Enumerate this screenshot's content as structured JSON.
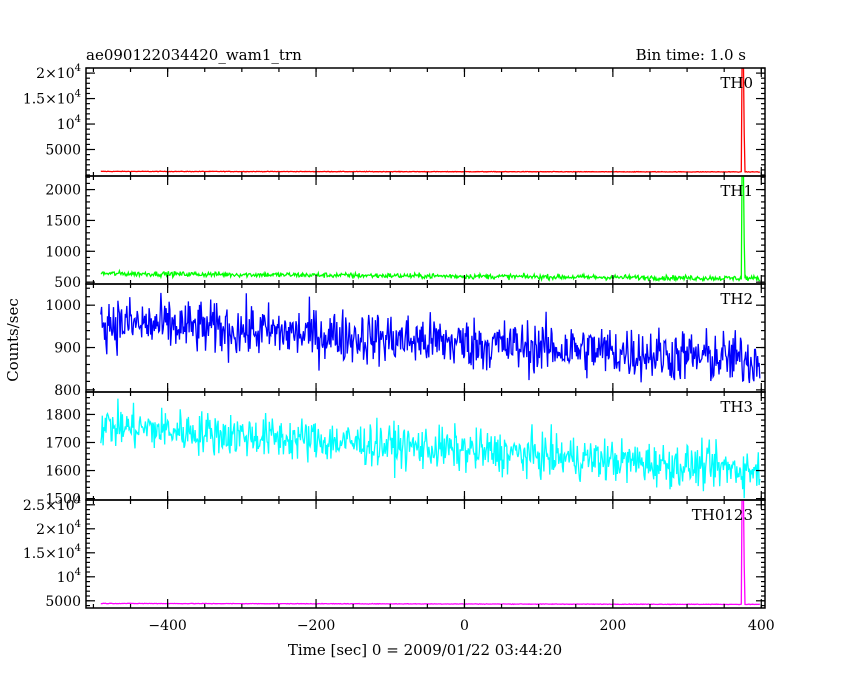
{
  "header": {
    "source_name": "ae090122034420_wam1_trn",
    "bin_time": "Bin time: 1.0 s"
  },
  "chart_data": {
    "type": "line",
    "xlabel": "Time [sec] 0 = 2009/01/22 03:44:20",
    "ylabel": "Counts/sec",
    "xlim": [
      -510,
      405
    ],
    "x_ticks": [
      -400,
      -200,
      0,
      200,
      400
    ],
    "x_tick_labels": [
      "−400",
      "−200",
      "0",
      "200",
      "400"
    ],
    "x_range_data": [
      -490,
      398
    ],
    "peak_time": 375,
    "panels": [
      {
        "name": "TH0",
        "color": "#ff0000",
        "ylim": [
          -200,
          21000
        ],
        "ticks": [
          5000,
          10000,
          15000,
          20000
        ],
        "tick_labels": [
          {
            "mant": "5000",
            "exp": ""
          },
          {
            "mant": "10",
            "exp": "4"
          },
          {
            "mant": "1.5×10",
            "exp": "4"
          },
          {
            "mant": "2×10",
            "exp": "4"
          }
        ],
        "baseline_start": 700,
        "baseline_end": 600,
        "noise": 40,
        "peak": 21000
      },
      {
        "name": "TH1",
        "color": "#00ff00",
        "ylim": [
          470,
          2220
        ],
        "ticks": [
          500,
          1000,
          1500,
          2000
        ],
        "tick_labels": [
          {
            "mant": "500",
            "exp": ""
          },
          {
            "mant": "1000",
            "exp": ""
          },
          {
            "mant": "1500",
            "exp": ""
          },
          {
            "mant": "2000",
            "exp": ""
          }
        ],
        "baseline_start": 640,
        "baseline_end": 560,
        "noise": 30,
        "peak": 2220
      },
      {
        "name": "TH2",
        "color": "#0000ff",
        "ylim": [
          795,
          1050
        ],
        "ticks": [
          800,
          900,
          1000
        ],
        "tick_labels": [
          {
            "mant": "800",
            "exp": ""
          },
          {
            "mant": "900",
            "exp": ""
          },
          {
            "mant": "1000",
            "exp": ""
          }
        ],
        "baseline_start": 960,
        "baseline_end": 870,
        "noise": 45,
        "peak": 0
      },
      {
        "name": "TH3",
        "color": "#00ffff",
        "ylim": [
          1495,
          1880
        ],
        "ticks": [
          1500,
          1600,
          1700,
          1800
        ],
        "tick_labels": [
          {
            "mant": "1500",
            "exp": ""
          },
          {
            "mant": "1600",
            "exp": ""
          },
          {
            "mant": "1700",
            "exp": ""
          },
          {
            "mant": "1800",
            "exp": ""
          }
        ],
        "baseline_start": 1760,
        "baseline_end": 1600,
        "noise": 55,
        "peak": 0
      },
      {
        "name": "TH0123",
        "color": "#ff00ff",
        "ylim": [
          3500,
          26000
        ],
        "ticks": [
          5000,
          10000,
          15000,
          20000,
          25000
        ],
        "tick_labels": [
          {
            "mant": "5000",
            "exp": ""
          },
          {
            "mant": "10",
            "exp": "4"
          },
          {
            "mant": "1.5×10",
            "exp": "4"
          },
          {
            "mant": "2×10",
            "exp": "4"
          },
          {
            "mant": "2.5×10",
            "exp": "4"
          }
        ],
        "baseline_start": 4450,
        "baseline_end": 4250,
        "noise": 40,
        "peak": 26000
      }
    ]
  }
}
